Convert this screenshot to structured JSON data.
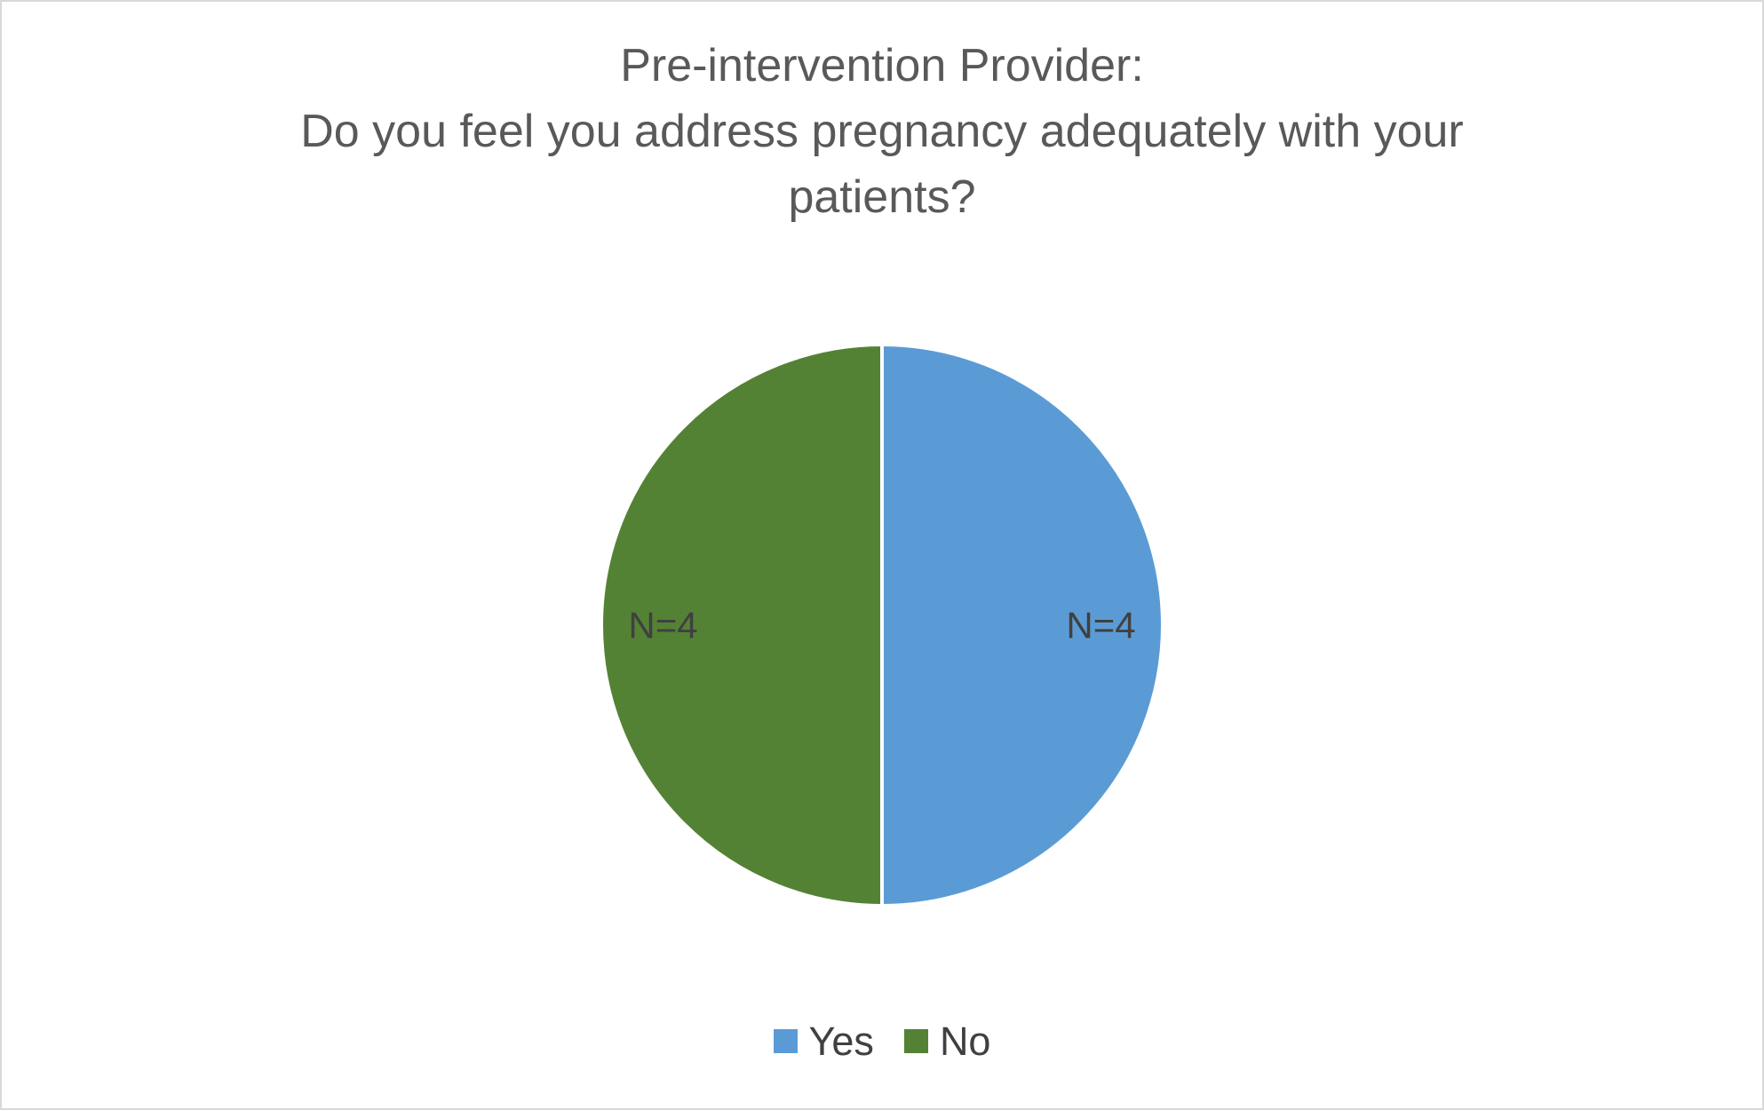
{
  "page": {
    "background": "#ffffff",
    "border_color": "#d9d9d9"
  },
  "chart_data": {
    "type": "pie",
    "title": "Pre-intervention Provider:\nDo you feel you address pregnancy adequately with your patients?",
    "title_lines": [
      "Pre-intervention Provider:",
      "Do you feel you address pregnancy adequately with your patients?"
    ],
    "categories": [
      "Yes",
      "No"
    ],
    "values": [
      4,
      4
    ],
    "slice_labels": [
      "N=4",
      "N=4"
    ],
    "colors": [
      "#5B9BD5",
      "#548235"
    ],
    "title_color": "#595959",
    "label_color": "#404040",
    "legend_position": "bottom",
    "start_angle_deg": -90,
    "label_radius_fraction": 0.78
  }
}
